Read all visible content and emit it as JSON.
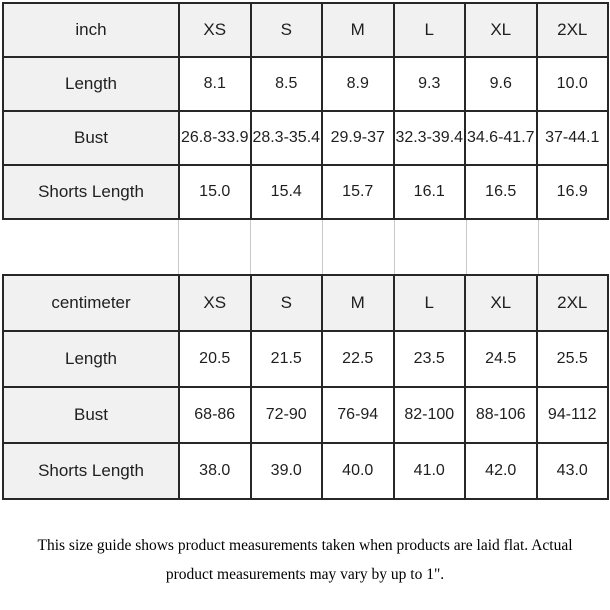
{
  "colors": {
    "header_bg": "#f1f1f1",
    "table_border": "#272727",
    "gap_divider": "#c9c9c9",
    "text": "#1f1f1f"
  },
  "tables": [
    {
      "unit_label": "inch",
      "sizes": [
        "XS",
        "S",
        "M",
        "L",
        "XL",
        "2XL"
      ],
      "rows": [
        {
          "label": "Length",
          "values": [
            "8.1",
            "8.5",
            "8.9",
            "9.3",
            "9.6",
            "10.0"
          ]
        },
        {
          "label": "Bust",
          "values": [
            "26.8-33.9",
            "28.3-35.4",
            "29.9-37",
            "32.3-39.4",
            "34.6-41.7",
            "37-44.1"
          ]
        },
        {
          "label": "Shorts Length",
          "values": [
            "15.0",
            "15.4",
            "15.7",
            "16.1",
            "16.5",
            "16.9"
          ]
        }
      ]
    },
    {
      "unit_label": "centimeter",
      "sizes": [
        "XS",
        "S",
        "M",
        "L",
        "XL",
        "2XL"
      ],
      "rows": [
        {
          "label": "Length",
          "values": [
            "20.5",
            "21.5",
            "22.5",
            "23.5",
            "24.5",
            "25.5"
          ]
        },
        {
          "label": "Bust",
          "values": [
            "68-86",
            "72-90",
            "76-94",
            "82-100",
            "88-106",
            "94-112"
          ]
        },
        {
          "label": "Shorts Length",
          "values": [
            "38.0",
            "39.0",
            "40.0",
            "41.0",
            "42.0",
            "43.0"
          ]
        }
      ]
    }
  ],
  "footer": {
    "text": "This size guide shows product measurements taken when products are laid flat. Actual product measurements may vary by up to 1\"."
  }
}
